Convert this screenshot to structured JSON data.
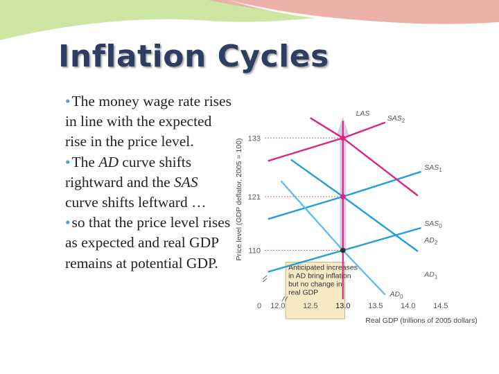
{
  "slide": {
    "title": "Inflation Cycles",
    "bullets": [
      {
        "parts": [
          "The money wage rate rises in line with the expected rise in the price level."
        ]
      },
      {
        "parts": [
          "The ",
          "AD",
          " curve shifts rightward and the ",
          "SAS",
          " curve shifts leftward …"
        ]
      },
      {
        "parts": [
          "so that the price level rises as expected and real GDP remains at potential GDP."
        ]
      }
    ]
  },
  "colors": {
    "title": "#2e3e62",
    "bullet": "#4aa1c9",
    "banner_green": "#cde7a3",
    "banner_pink": "#ecb1a8",
    "sas": "#1e9fda",
    "ad": "#5bc2e8",
    "shifted": "#e0237f",
    "arrow": "#d7cbe6",
    "callout_bg": "#f6e9c4",
    "gridline": "#e85e8d"
  },
  "chart_data": {
    "type": "line",
    "xlabel": "Real GDP (trillions of 2005 dollars)",
    "ylabel": "Price level (GDP deflator, 2005 = 100)",
    "x_origin_label": "0",
    "y_ticks": [
      110,
      121,
      133
    ],
    "x_ticks": [
      12.0,
      12.5,
      13.0,
      13.5,
      14.0,
      14.5
    ],
    "xlim": [
      11.8,
      14.8
    ],
    "ylim": [
      100,
      138
    ],
    "potential_gdp": 13.0,
    "series": [
      {
        "name": "LAS",
        "color": "#e0237f",
        "points": [
          [
            13.0,
            100
          ],
          [
            13.0,
            136.5
          ]
        ]
      },
      {
        "name": "SAS2",
        "color": "#e0237f",
        "points": [
          [
            11.85,
            128.3
          ],
          [
            13.0,
            133
          ],
          [
            13.65,
            136.2
          ]
        ]
      },
      {
        "name": "SAS1",
        "color": "#1e9fda",
        "points": [
          [
            11.85,
            116.4
          ],
          [
            13.0,
            121
          ],
          [
            14.2,
            126.1
          ]
        ]
      },
      {
        "name": "SAS0",
        "color": "#1e9fda",
        "points": [
          [
            11.85,
            105.6
          ],
          [
            13.0,
            110
          ],
          [
            14.2,
            114.6
          ]
        ]
      },
      {
        "name": "AD2",
        "color": "#e0237f",
        "points": [
          [
            12.5,
            137.1
          ],
          [
            13.0,
            133
          ],
          [
            14.15,
            121.2
          ]
        ]
      },
      {
        "name": "AD1",
        "color": "#1e9fda",
        "points": [
          [
            12.2,
            128.6
          ],
          [
            13.0,
            121
          ],
          [
            14.15,
            109.8
          ]
        ]
      },
      {
        "name": "AD0",
        "color": "#5bc2e8",
        "points": [
          [
            12.05,
            124.2
          ],
          [
            13.0,
            110
          ],
          [
            13.65,
            100.9
          ]
        ]
      }
    ],
    "equilibria": [
      {
        "x": 13.0,
        "y": 110,
        "color": "#333333"
      },
      {
        "x": 13.0,
        "y": 121,
        "color": "#e0237f"
      },
      {
        "x": 13.0,
        "y": 133,
        "color": "#e0237f"
      }
    ],
    "labels": [
      {
        "main": "LAS",
        "sub": "",
        "x": 13.2,
        "y": 137.6
      },
      {
        "main": "SAS",
        "sub": "2",
        "x": 13.68,
        "y": 136.6
      },
      {
        "main": "SAS",
        "sub": "1",
        "x": 14.25,
        "y": 126.5
      },
      {
        "main": "SAS",
        "sub": "0",
        "x": 14.25,
        "y": 115.0
      },
      {
        "main": "AD",
        "sub": "2",
        "x": 14.25,
        "y": 111.6
      },
      {
        "main": "AD",
        "sub": "1",
        "x": 14.25,
        "y": 104.6
      },
      {
        "main": "AD",
        "sub": "0",
        "x": 13.72,
        "y": 100.6
      }
    ],
    "annotation": [
      "Anticipated increases",
      "in AD bring inflation",
      "but no change in",
      "real GDP"
    ]
  }
}
